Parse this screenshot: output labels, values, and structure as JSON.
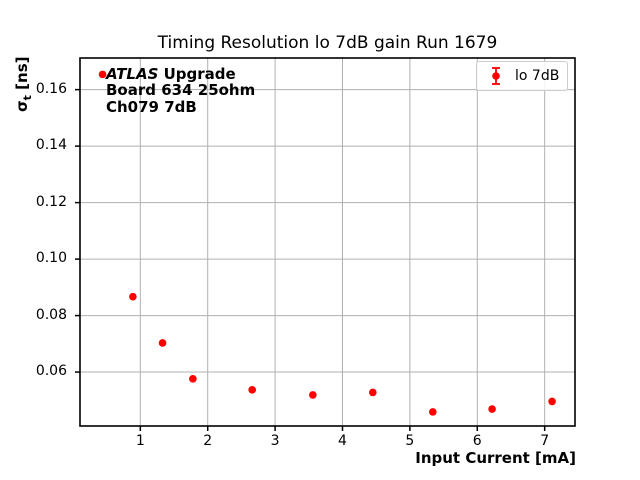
{
  "colors": {
    "accent": "#ff0000",
    "grid": "#b0b0b0",
    "spine": "#000000",
    "legend_border": "#cccccc",
    "text": "#000000"
  },
  "annotation": {
    "experiment": "ATLAS",
    "line1_rest": "Upgrade",
    "line2": "Board 634 25ohm",
    "line3": "Ch079 7dB"
  },
  "chart_data": {
    "type": "scatter",
    "title": "Timing Resolution lo 7dB gain Run 1679",
    "xlabel": "Input Current [mA]",
    "ylabel": "sigma_t [ns]",
    "ylabel_parts": {
      "symbol": "σ",
      "subscript": "t",
      "unit": "[ns]"
    },
    "series": [
      {
        "name": "lo 7dB",
        "marker": "circle-with-errorbars",
        "x": [
          0.44,
          0.89,
          1.33,
          1.78,
          2.66,
          3.56,
          4.45,
          5.34,
          6.22,
          7.11
        ],
        "y": [
          0.1654,
          0.0867,
          0.0703,
          0.0576,
          0.0537,
          0.0519,
          0.0528,
          0.0459,
          0.0469,
          0.0496
        ],
        "yerr": [
          0.0008,
          0.0008,
          0.0008,
          0.0008,
          0.0008,
          0.0008,
          0.0008,
          0.0008,
          0.0008,
          0.0008
        ]
      }
    ],
    "xlim": [
      0.105,
      7.45
    ],
    "ylim": [
      0.0409,
      0.1712
    ],
    "xticks": {
      "values": [
        1,
        2,
        3,
        4,
        5,
        6,
        7
      ],
      "labels": [
        "1",
        "2",
        "3",
        "4",
        "5",
        "6",
        "7"
      ]
    },
    "yticks": {
      "values": [
        0.06,
        0.08,
        0.1,
        0.12,
        0.14,
        0.16
      ],
      "labels": [
        "0.06",
        "0.08",
        "0.10",
        "0.12",
        "0.14",
        "0.16"
      ]
    },
    "grid": true,
    "legend_position": "upper right"
  }
}
